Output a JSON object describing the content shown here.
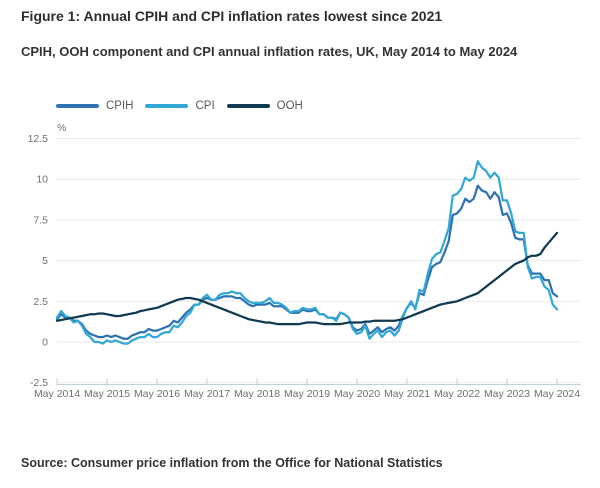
{
  "page": {
    "title": "Figure 1: Annual CPIH and CPI inflation rates lowest since 2021",
    "subtitle": "CPIH, OOH component and CPI annual inflation rates, UK, May 2014 to May 2024",
    "source": "Source: Consumer price inflation from the Office for National Statistics"
  },
  "legend": [
    {
      "label": "CPIH",
      "color": "#2d73b2"
    },
    {
      "label": "CPI",
      "color": "#33a7d6"
    },
    {
      "label": "OOH",
      "color": "#0f3a52"
    }
  ],
  "colors": {
    "gridline": "#e9e9e9",
    "axis_line": "#bfd2dc",
    "axis_text": "#707070",
    "legend_text": "#595959"
  },
  "chart_data": {
    "type": "line",
    "title": "CPIH, OOH component and CPI annual inflation rates, UK, May 2014 to May 2024",
    "ylabel": "%",
    "xlabel": "",
    "frequency": "monthly",
    "x_start": "May 2014",
    "x_end": "May 2024",
    "ylim": [
      -2.5,
      12.5
    ],
    "grid": true,
    "legend_position": "top",
    "y_ticks": [
      12.5,
      10,
      7.5,
      5,
      2.5,
      0,
      -2.5
    ],
    "x_tick_labels": [
      "May 2014",
      "May 2015",
      "May 2016",
      "May 2017",
      "May 2018",
      "May 2019",
      "May 2020",
      "May 2021",
      "May 2022",
      "May 2023",
      "May 2024"
    ],
    "series": [
      {
        "name": "CPIH",
        "color": "#2d73b2",
        "values": [
          1.4,
          1.7,
          1.5,
          1.5,
          1.3,
          1.3,
          1.1,
          0.7,
          0.5,
          0.4,
          0.3,
          0.3,
          0.4,
          0.3,
          0.4,
          0.3,
          0.2,
          0.2,
          0.4,
          0.5,
          0.6,
          0.6,
          0.8,
          0.7,
          0.7,
          0.8,
          0.9,
          1.0,
          1.3,
          1.2,
          1.5,
          1.8,
          2.0,
          2.3,
          2.3,
          2.6,
          2.7,
          2.6,
          2.6,
          2.7,
          2.8,
          2.8,
          2.8,
          2.7,
          2.7,
          2.5,
          2.3,
          2.2,
          2.3,
          2.3,
          2.3,
          2.4,
          2.2,
          2.2,
          2.2,
          2.0,
          1.8,
          1.8,
          1.8,
          2.0,
          1.9,
          1.9,
          2.0,
          1.7,
          1.7,
          1.5,
          1.5,
          1.4,
          1.8,
          1.7,
          1.5,
          0.9,
          0.7,
          0.8,
          1.1,
          0.5,
          0.7,
          0.9,
          0.6,
          0.8,
          0.9,
          0.7,
          1.0,
          1.6,
          2.1,
          2.4,
          2.1,
          3.0,
          2.9,
          3.8,
          4.6,
          4.8,
          4.9,
          5.5,
          6.2,
          7.8,
          7.9,
          8.2,
          8.8,
          8.6,
          8.8,
          9.6,
          9.3,
          9.2,
          8.8,
          9.2,
          8.9,
          7.8,
          7.9,
          7.3,
          6.4,
          6.3,
          6.3,
          4.7,
          4.2,
          4.2,
          4.2,
          3.8,
          3.8,
          3.0,
          2.8
        ]
      },
      {
        "name": "CPI",
        "color": "#33a7d6",
        "values": [
          1.5,
          1.9,
          1.6,
          1.5,
          1.2,
          1.3,
          1.0,
          0.5,
          0.3,
          0.0,
          0.0,
          -0.1,
          0.1,
          0.0,
          0.1,
          0.0,
          -0.1,
          -0.1,
          0.1,
          0.2,
          0.3,
          0.3,
          0.5,
          0.3,
          0.3,
          0.5,
          0.6,
          0.6,
          1.0,
          0.9,
          1.2,
          1.6,
          1.8,
          2.3,
          2.3,
          2.7,
          2.9,
          2.6,
          2.6,
          2.9,
          3.0,
          3.0,
          3.1,
          3.0,
          3.0,
          2.7,
          2.5,
          2.4,
          2.4,
          2.4,
          2.5,
          2.7,
          2.4,
          2.4,
          2.3,
          2.1,
          1.8,
          1.9,
          1.9,
          2.1,
          2.0,
          2.0,
          2.1,
          1.7,
          1.7,
          1.5,
          1.5,
          1.3,
          1.8,
          1.7,
          1.5,
          0.8,
          0.5,
          0.6,
          1.0,
          0.2,
          0.5,
          0.7,
          0.3,
          0.6,
          0.7,
          0.4,
          0.7,
          1.5,
          2.1,
          2.5,
          2.0,
          3.2,
          3.1,
          4.2,
          5.1,
          5.4,
          5.5,
          6.2,
          7.0,
          9.0,
          9.1,
          9.4,
          10.1,
          9.9,
          10.1,
          11.1,
          10.7,
          10.5,
          10.1,
          10.4,
          10.1,
          8.7,
          8.7,
          7.9,
          6.8,
          6.7,
          6.7,
          4.6,
          3.9,
          4.0,
          4.0,
          3.4,
          3.2,
          2.3,
          2.0
        ]
      },
      {
        "name": "OOH",
        "color": "#0f3a52",
        "values": [
          1.3,
          1.35,
          1.4,
          1.45,
          1.5,
          1.55,
          1.6,
          1.65,
          1.7,
          1.7,
          1.75,
          1.75,
          1.7,
          1.65,
          1.6,
          1.6,
          1.65,
          1.7,
          1.75,
          1.8,
          1.9,
          1.95,
          2.0,
          2.05,
          2.1,
          2.2,
          2.3,
          2.4,
          2.5,
          2.6,
          2.65,
          2.7,
          2.7,
          2.65,
          2.6,
          2.5,
          2.4,
          2.3,
          2.2,
          2.1,
          2.0,
          1.9,
          1.8,
          1.7,
          1.6,
          1.5,
          1.4,
          1.35,
          1.3,
          1.25,
          1.2,
          1.2,
          1.15,
          1.1,
          1.1,
          1.1,
          1.1,
          1.1,
          1.1,
          1.15,
          1.2,
          1.2,
          1.2,
          1.15,
          1.1,
          1.1,
          1.1,
          1.1,
          1.1,
          1.15,
          1.2,
          1.2,
          1.2,
          1.2,
          1.25,
          1.25,
          1.3,
          1.3,
          1.3,
          1.3,
          1.3,
          1.3,
          1.35,
          1.4,
          1.5,
          1.6,
          1.7,
          1.8,
          1.9,
          2.0,
          2.1,
          2.2,
          2.3,
          2.35,
          2.4,
          2.45,
          2.5,
          2.6,
          2.7,
          2.8,
          2.9,
          3.0,
          3.2,
          3.4,
          3.6,
          3.8,
          4.0,
          4.2,
          4.4,
          4.6,
          4.8,
          4.9,
          5.0,
          5.2,
          5.3,
          5.3,
          5.4,
          5.8,
          6.1,
          6.4,
          6.7
        ]
      }
    ]
  }
}
